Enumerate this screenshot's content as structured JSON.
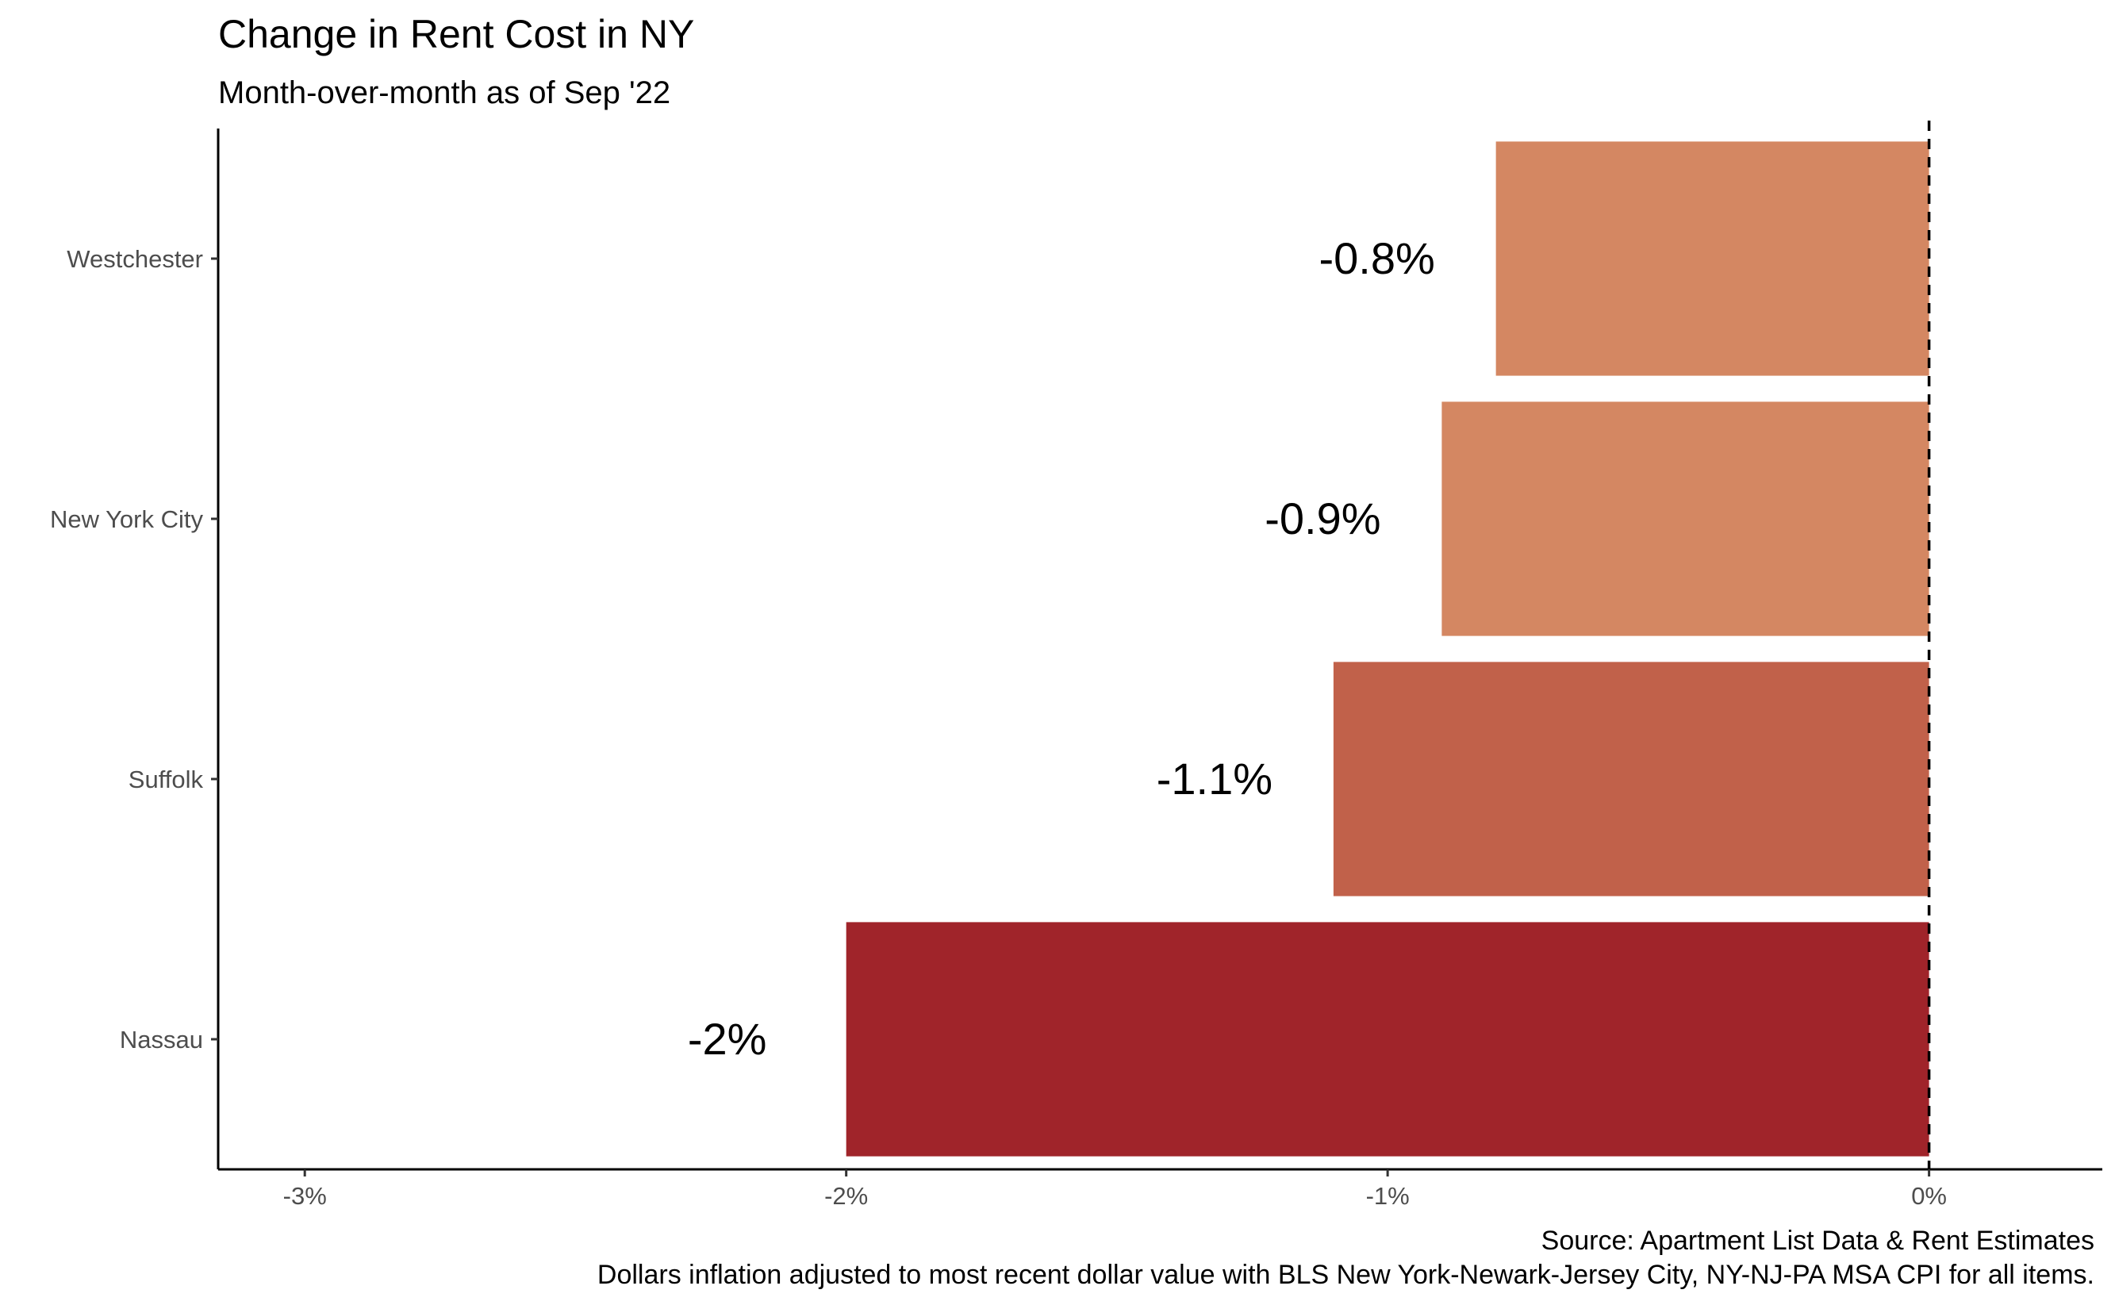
{
  "chart_data": {
    "type": "bar",
    "orientation": "horizontal",
    "title": "Change in Rent Cost in NY",
    "subtitle": "Month-over-month as of Sep '22",
    "categories": [
      "Westchester",
      "New York City",
      "Suffolk",
      "Nassau"
    ],
    "values": [
      -0.8,
      -0.9,
      -1.1,
      -2.0
    ],
    "value_labels": [
      "-0.8%",
      "-0.9%",
      "-1.1%",
      "-2%"
    ],
    "colors": [
      "#d48762",
      "#d48762",
      "#c1614a",
      "#a0242a"
    ],
    "xlim": [
      -3.16,
      0.32
    ],
    "x_ticks": [
      -3,
      -2,
      -1,
      0
    ],
    "x_tick_labels": [
      "-3%",
      "-2%",
      "-1%",
      "0%"
    ],
    "reference_line": {
      "value": 0,
      "style": "dashed"
    },
    "xlabel": "",
    "ylabel": "",
    "grid": false,
    "legend": "none",
    "caption": [
      "Source: Apartment List Data & Rent Estimates",
      "Dollars inflation adjusted to most recent dollar value with BLS New York-Newark-Jersey City, NY-NJ-PA MSA CPI for all items."
    ]
  }
}
